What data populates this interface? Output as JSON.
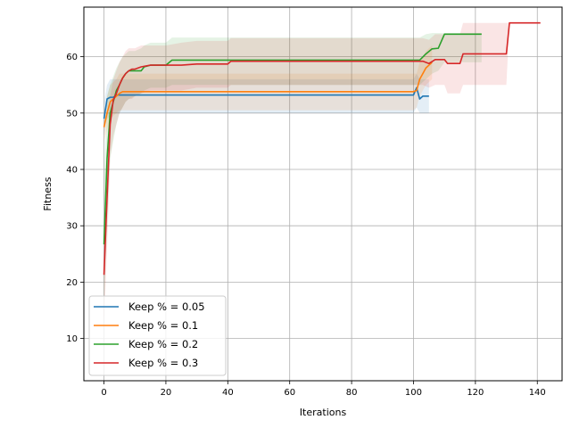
{
  "chart_data": {
    "type": "line",
    "xlabel": "Iterations",
    "ylabel": "Fitness",
    "xlim": [
      -6.5,
      148
    ],
    "ylim": [
      2.5,
      68.8
    ],
    "xticks": [
      0,
      20,
      40,
      60,
      80,
      100,
      120,
      140
    ],
    "yticks": [
      10,
      20,
      30,
      40,
      50,
      60
    ],
    "grid": true,
    "legend_position": "lower-left",
    "series": [
      {
        "name": "Keep % = 0.05",
        "color": "#1f77b4",
        "x": [
          0,
          1,
          2,
          3,
          4,
          5,
          10,
          20,
          40,
          60,
          80,
          100,
          101,
          102,
          103,
          104,
          105
        ],
        "y": [
          49,
          52.5,
          52.8,
          52.8,
          53.2,
          53.2,
          53.2,
          53.2,
          53.2,
          53.2,
          53.2,
          53.2,
          54.5,
          52.5,
          53,
          53,
          53
        ],
        "band_lo": [
          46,
          49,
          49.5,
          50,
          50,
          50,
          50,
          50,
          50,
          50,
          50,
          50,
          51,
          50,
          50,
          50,
          50
        ],
        "band_hi": [
          52,
          55,
          56,
          56,
          56,
          56,
          56,
          56,
          56,
          56,
          56,
          56,
          57,
          56,
          56,
          56,
          56
        ]
      },
      {
        "name": "Keep % = 0.1",
        "color": "#ff7f0e",
        "x": [
          0,
          1,
          2,
          3,
          4,
          5,
          6,
          8,
          10,
          20,
          40,
          60,
          80,
          100,
          101,
          102,
          103,
          104,
          105,
          106
        ],
        "y": [
          47.5,
          50,
          52,
          52.5,
          53,
          53.5,
          53.8,
          53.8,
          53.8,
          53.8,
          53.8,
          53.8,
          53.8,
          53.8,
          54,
          56,
          57,
          58,
          58.5,
          59
        ],
        "band_lo": [
          45,
          47,
          49,
          49.5,
          50,
          50.5,
          50.5,
          50.5,
          50.5,
          50.5,
          50.5,
          50.5,
          50.5,
          50.5,
          51,
          53,
          54,
          55,
          55.5,
          56
        ],
        "band_hi": [
          50,
          53,
          55,
          55.5,
          56,
          57,
          57,
          57,
          57,
          57,
          57,
          57,
          57,
          57,
          57,
          59,
          60,
          61,
          61.5,
          62
        ]
      },
      {
        "name": "Keep % = 0.2",
        "color": "#2ca02c",
        "x": [
          0,
          1,
          2,
          3,
          4,
          5,
          6,
          7,
          8,
          10,
          12,
          13,
          15,
          20,
          22,
          40,
          60,
          80,
          100,
          102,
          104,
          106,
          108,
          110,
          115,
          120,
          122
        ],
        "y": [
          26.7,
          42,
          50,
          52,
          54,
          55,
          56.2,
          57,
          57.5,
          57.5,
          57.5,
          58.2,
          58.5,
          58.5,
          59.4,
          59.4,
          59.4,
          59.4,
          59.4,
          59.4,
          60.5,
          61.4,
          61.5,
          64,
          64,
          64,
          64
        ],
        "band_lo": [
          15,
          30,
          42,
          45,
          48,
          50,
          51,
          52,
          52.5,
          53,
          53.5,
          54,
          54.5,
          54.5,
          55,
          55,
          55,
          55,
          55,
          55,
          56,
          57,
          57.5,
          59,
          59,
          59,
          59
        ],
        "band_hi": [
          37,
          53,
          55,
          56.5,
          58,
          59,
          60,
          60.5,
          61,
          61,
          61.5,
          62,
          62.5,
          62.5,
          63.4,
          63.4,
          63.4,
          63.4,
          63.4,
          63.4,
          64,
          64.2,
          64.2,
          64.2,
          64.2,
          64.2,
          64.2
        ]
      },
      {
        "name": "Keep % = 0.3",
        "color": "#d62728",
        "x": [
          0,
          1,
          2,
          3,
          4,
          5,
          6,
          7,
          8,
          9,
          10,
          12,
          15,
          20,
          25,
          30,
          40,
          41,
          60,
          80,
          100,
          103,
          105,
          107,
          110,
          111,
          115,
          116,
          120,
          125,
          130,
          131,
          135,
          140,
          141
        ],
        "y": [
          21.3,
          35,
          48,
          52.3,
          53.5,
          55,
          56.2,
          57,
          57.5,
          57.8,
          57.8,
          58.2,
          58.5,
          58.5,
          58.5,
          58.7,
          58.7,
          59.2,
          59.2,
          59.2,
          59.2,
          59.2,
          58.8,
          59.5,
          59.5,
          58.8,
          58.8,
          60.5,
          60.5,
          60.5,
          60.5,
          66,
          66,
          66,
          66
        ],
        "band_lo": [
          12,
          26,
          42,
          46,
          48,
          50,
          51,
          52,
          52.5,
          52.5,
          53,
          53.5,
          54,
          54,
          54,
          54.5,
          54.5,
          55,
          55,
          55,
          55,
          55,
          54.5,
          55,
          55,
          53.5,
          53.5,
          55,
          55,
          55,
          55,
          66,
          66,
          66,
          66
        ],
        "band_hi": [
          30,
          44,
          53,
          56,
          57.5,
          59,
          60,
          61,
          61.5,
          61.5,
          61.5,
          62,
          62,
          62,
          62.5,
          62.8,
          62.8,
          63.3,
          63.3,
          63.3,
          63.3,
          63.3,
          63,
          64,
          64,
          64,
          64,
          66,
          66,
          66,
          66,
          66,
          66,
          66,
          66
        ]
      }
    ]
  }
}
